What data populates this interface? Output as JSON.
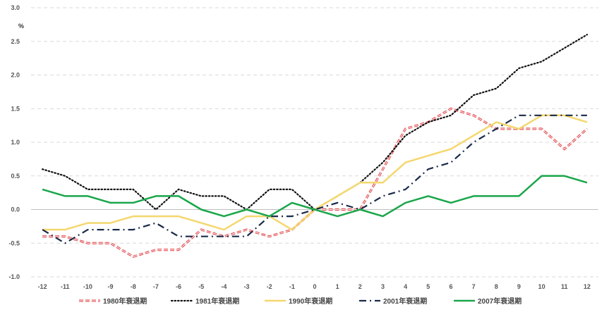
{
  "chart_data": {
    "type": "line",
    "title": "",
    "xlabel": "",
    "ylabel": "%",
    "ylim": [
      -1.0,
      3.0
    ],
    "y_ticks": [
      "3.0",
      "2.5",
      "2.0",
      "1.5",
      "1.0",
      "0.5",
      "0.0",
      "-0.5",
      "-1.0"
    ],
    "x": [
      -12,
      -11,
      -10,
      -9,
      -8,
      -7,
      -6,
      -5,
      -4,
      -3,
      -2,
      -1,
      0,
      1,
      2,
      3,
      4,
      5,
      6,
      7,
      8,
      9,
      10,
      11,
      12
    ],
    "x_tick_labels": [
      "-12",
      "-11",
      "-10",
      "-9",
      "-8",
      "-7",
      "-6",
      "-5",
      "-4",
      "-3",
      "-2",
      "-1",
      "0",
      "1",
      "2",
      "3",
      "4",
      "5",
      "6",
      "7",
      "8",
      "9",
      "10",
      "11",
      "12"
    ],
    "grid": "horizontal dashed",
    "legend_position": "bottom",
    "series": [
      {
        "name": "1980年衰退期",
        "color": "#e0393e",
        "style": "dashed-outline",
        "values": [
          -0.4,
          -0.4,
          -0.5,
          -0.5,
          -0.7,
          -0.6,
          -0.6,
          -0.3,
          -0.4,
          -0.3,
          -0.4,
          -0.3,
          0.0,
          0.0,
          0.0,
          0.6,
          1.2,
          1.3,
          1.5,
          1.4,
          1.2,
          1.2,
          1.2,
          0.9,
          1.2
        ]
      },
      {
        "name": "1981年衰退期",
        "color": "#111111",
        "style": "dotted",
        "values": [
          0.6,
          0.5,
          0.3,
          0.3,
          0.3,
          0.0,
          0.3,
          0.2,
          0.2,
          0.0,
          0.3,
          0.3,
          0.0,
          0.2,
          0.4,
          0.7,
          1.1,
          1.3,
          1.4,
          1.7,
          1.8,
          2.1,
          2.2,
          2.4,
          2.6
        ]
      },
      {
        "name": "1990年衰退期",
        "color": "#f5d76e",
        "style": "solid",
        "values": [
          -0.3,
          -0.3,
          -0.2,
          -0.2,
          -0.1,
          -0.1,
          -0.1,
          -0.2,
          -0.3,
          -0.1,
          -0.1,
          -0.3,
          0.0,
          0.2,
          0.4,
          0.4,
          0.7,
          0.8,
          0.9,
          1.1,
          1.3,
          1.2,
          1.4,
          1.4,
          1.3
        ]
      },
      {
        "name": "2001年衰退期",
        "color": "#1a2a4a",
        "style": "dash-dot",
        "values": [
          -0.3,
          -0.5,
          -0.3,
          -0.3,
          -0.3,
          -0.2,
          -0.4,
          -0.4,
          -0.4,
          -0.4,
          -0.1,
          -0.1,
          0.0,
          0.1,
          0.0,
          0.2,
          0.3,
          0.6,
          0.7,
          1.0,
          1.2,
          1.4,
          1.4,
          1.4,
          1.4
        ]
      },
      {
        "name": "2007年衰退期",
        "color": "#1aa64a",
        "style": "solid",
        "values": [
          0.3,
          0.2,
          0.2,
          0.1,
          0.1,
          0.2,
          0.2,
          0.0,
          -0.1,
          0.0,
          -0.1,
          0.1,
          0.0,
          -0.1,
          0.0,
          -0.1,
          0.1,
          0.2,
          0.1,
          0.2,
          0.2,
          0.2,
          0.5,
          0.5,
          0.4
        ]
      }
    ]
  }
}
